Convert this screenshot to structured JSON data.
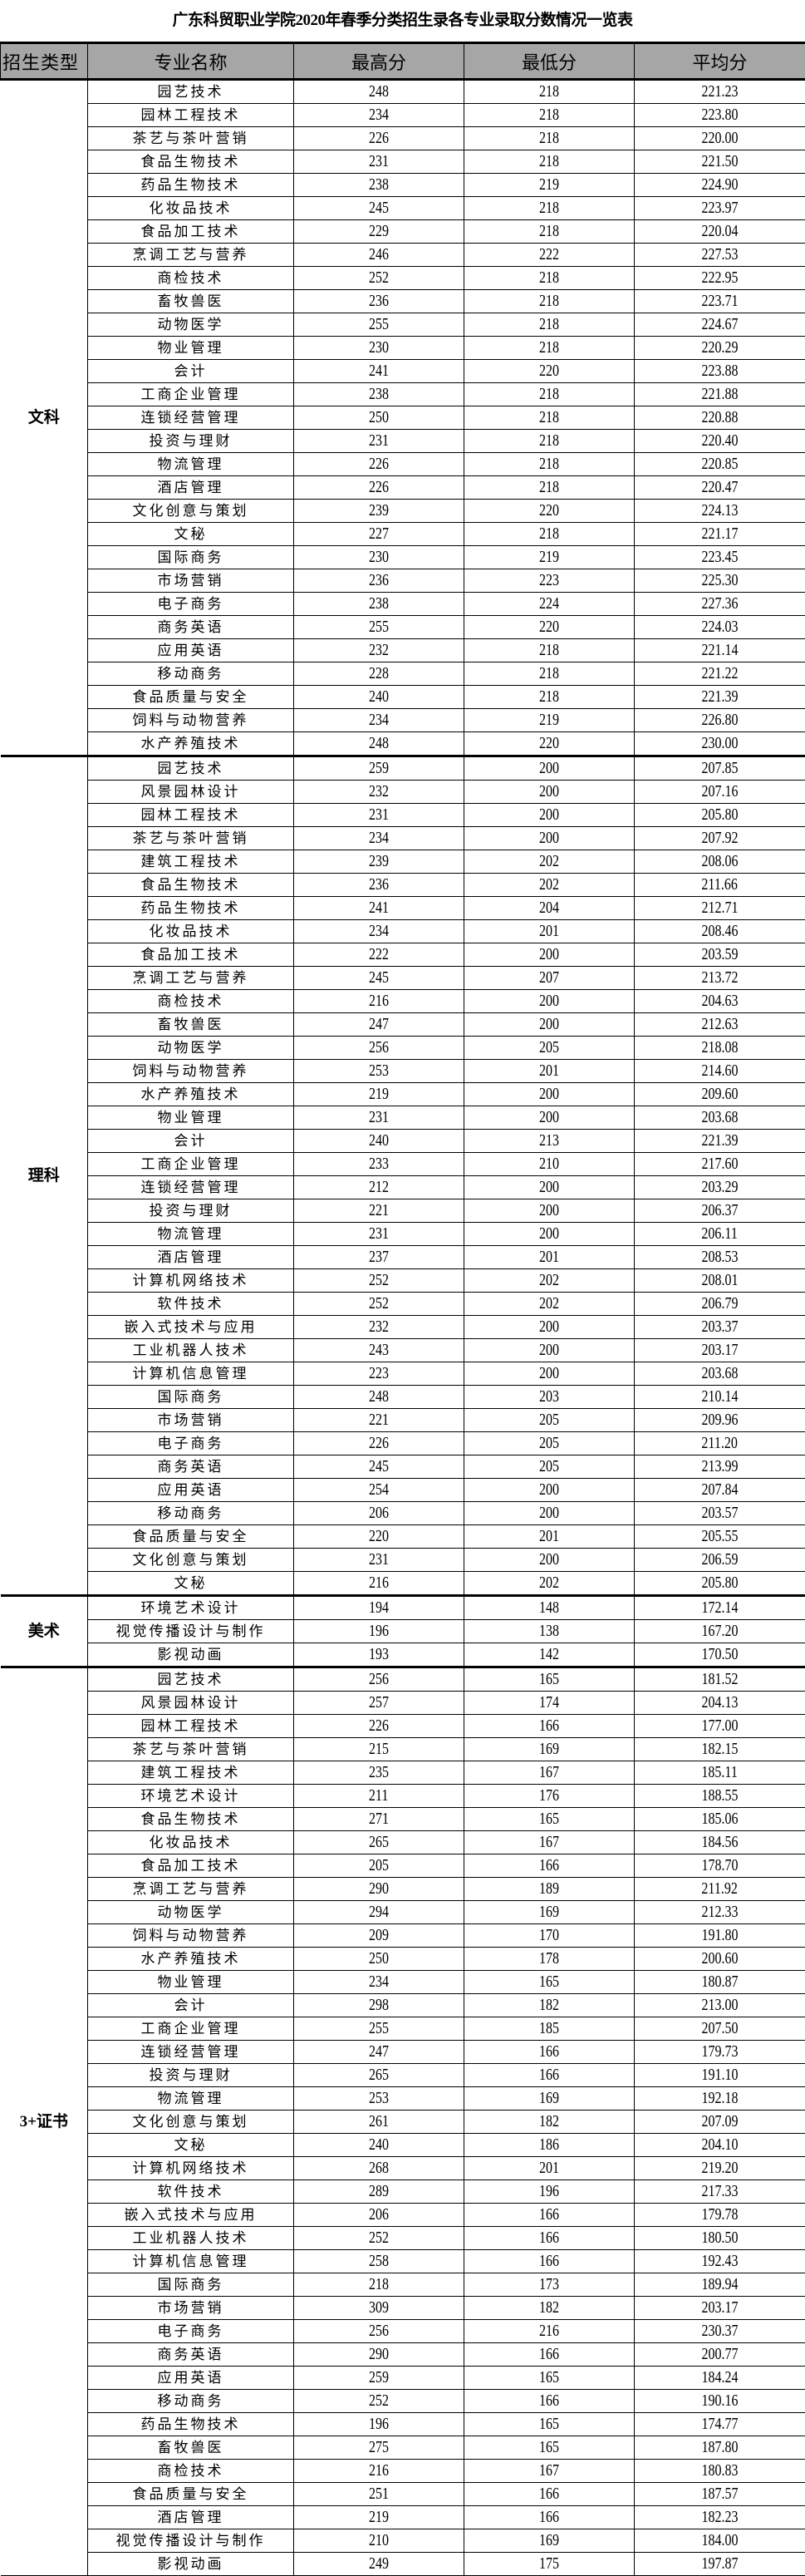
{
  "title": "广东科贸职业学院2020年春季分类招生录各专业录取分数情况一览表",
  "headers": [
    "招生类型",
    "专业名称",
    "最高分",
    "最低分",
    "平均分"
  ],
  "header_bg": "#a6a6a6",
  "groups": [
    {
      "type": "文科",
      "rows": [
        [
          "园艺技术",
          "248",
          "218",
          "221.23"
        ],
        [
          "园林工程技术",
          "234",
          "218",
          "223.80"
        ],
        [
          "茶艺与茶叶营销",
          "226",
          "218",
          "220.00"
        ],
        [
          "食品生物技术",
          "231",
          "218",
          "221.50"
        ],
        [
          "药品生物技术",
          "238",
          "219",
          "224.90"
        ],
        [
          "化妆品技术",
          "245",
          "218",
          "223.97"
        ],
        [
          "食品加工技术",
          "229",
          "218",
          "220.04"
        ],
        [
          "烹调工艺与营养",
          "246",
          "222",
          "227.53"
        ],
        [
          "商检技术",
          "252",
          "218",
          "222.95"
        ],
        [
          "畜牧兽医",
          "236",
          "218",
          "223.71"
        ],
        [
          "动物医学",
          "255",
          "218",
          "224.67"
        ],
        [
          "物业管理",
          "230",
          "218",
          "220.29"
        ],
        [
          "会计",
          "241",
          "220",
          "223.88"
        ],
        [
          "工商企业管理",
          "238",
          "218",
          "221.88"
        ],
        [
          "连锁经营管理",
          "250",
          "218",
          "220.88"
        ],
        [
          "投资与理财",
          "231",
          "218",
          "220.40"
        ],
        [
          "物流管理",
          "226",
          "218",
          "220.85"
        ],
        [
          "酒店管理",
          "226",
          "218",
          "220.47"
        ],
        [
          "文化创意与策划",
          "239",
          "220",
          "224.13"
        ],
        [
          "文秘",
          "227",
          "218",
          "221.17"
        ],
        [
          "国际商务",
          "230",
          "219",
          "223.45"
        ],
        [
          "市场营销",
          "236",
          "223",
          "225.30"
        ],
        [
          "电子商务",
          "238",
          "224",
          "227.36"
        ],
        [
          "商务英语",
          "255",
          "220",
          "224.03"
        ],
        [
          "应用英语",
          "232",
          "218",
          "221.14"
        ],
        [
          "移动商务",
          "228",
          "218",
          "221.22"
        ],
        [
          "食品质量与安全",
          "240",
          "218",
          "221.39"
        ],
        [
          "饲料与动物营养",
          "234",
          "219",
          "226.80"
        ],
        [
          "水产养殖技术",
          "248",
          "220",
          "230.00"
        ]
      ]
    },
    {
      "type": "理科",
      "rows": [
        [
          "园艺技术",
          "259",
          "200",
          "207.85"
        ],
        [
          "风景园林设计",
          "232",
          "200",
          "207.16"
        ],
        [
          "园林工程技术",
          "231",
          "200",
          "205.80"
        ],
        [
          "茶艺与茶叶营销",
          "234",
          "200",
          "207.92"
        ],
        [
          "建筑工程技术",
          "239",
          "202",
          "208.06"
        ],
        [
          "食品生物技术",
          "236",
          "202",
          "211.66"
        ],
        [
          "药品生物技术",
          "241",
          "204",
          "212.71"
        ],
        [
          "化妆品技术",
          "234",
          "201",
          "208.46"
        ],
        [
          "食品加工技术",
          "222",
          "200",
          "203.59"
        ],
        [
          "烹调工艺与营养",
          "245",
          "207",
          "213.72"
        ],
        [
          "商检技术",
          "216",
          "200",
          "204.63"
        ],
        [
          "畜牧兽医",
          "247",
          "200",
          "212.63"
        ],
        [
          "动物医学",
          "256",
          "205",
          "218.08"
        ],
        [
          "饲料与动物营养",
          "253",
          "201",
          "214.60"
        ],
        [
          "水产养殖技术",
          "219",
          "200",
          "209.60"
        ],
        [
          "物业管理",
          "231",
          "200",
          "203.68"
        ],
        [
          "会计",
          "240",
          "213",
          "221.39"
        ],
        [
          "工商企业管理",
          "233",
          "210",
          "217.60"
        ],
        [
          "连锁经营管理",
          "212",
          "200",
          "203.29"
        ],
        [
          "投资与理财",
          "221",
          "200",
          "206.37"
        ],
        [
          "物流管理",
          "231",
          "200",
          "206.11"
        ],
        [
          "酒店管理",
          "237",
          "201",
          "208.53"
        ],
        [
          "计算机网络技术",
          "252",
          "202",
          "208.01"
        ],
        [
          "软件技术",
          "252",
          "202",
          "206.79"
        ],
        [
          "嵌入式技术与应用",
          "232",
          "200",
          "203.37"
        ],
        [
          "工业机器人技术",
          "243",
          "200",
          "203.17"
        ],
        [
          "计算机信息管理",
          "223",
          "200",
          "203.68"
        ],
        [
          "国际商务",
          "248",
          "203",
          "210.14"
        ],
        [
          "市场营销",
          "221",
          "205",
          "209.96"
        ],
        [
          "电子商务",
          "226",
          "205",
          "211.20"
        ],
        [
          "商务英语",
          "245",
          "205",
          "213.99"
        ],
        [
          "应用英语",
          "254",
          "200",
          "207.84"
        ],
        [
          "移动商务",
          "206",
          "200",
          "203.57"
        ],
        [
          "食品质量与安全",
          "220",
          "201",
          "205.55"
        ],
        [
          "文化创意与策划",
          "231",
          "200",
          "206.59"
        ],
        [
          "文秘",
          "216",
          "202",
          "205.80"
        ]
      ]
    },
    {
      "type": "美术",
      "rows": [
        [
          "环境艺术设计",
          "194",
          "148",
          "172.14"
        ],
        [
          "视觉传播设计与制作",
          "196",
          "138",
          "167.20"
        ],
        [
          "影视动画",
          "193",
          "142",
          "170.50"
        ]
      ]
    },
    {
      "type": "3+证书",
      "rows": [
        [
          "园艺技术",
          "256",
          "165",
          "181.52"
        ],
        [
          "风景园林设计",
          "257",
          "174",
          "204.13"
        ],
        [
          "园林工程技术",
          "226",
          "166",
          "177.00"
        ],
        [
          "茶艺与茶叶营销",
          "215",
          "169",
          "182.15"
        ],
        [
          "建筑工程技术",
          "235",
          "167",
          "185.11"
        ],
        [
          "环境艺术设计",
          "211",
          "176",
          "188.55"
        ],
        [
          "食品生物技术",
          "271",
          "165",
          "185.06"
        ],
        [
          "化妆品技术",
          "265",
          "167",
          "184.56"
        ],
        [
          "食品加工技术",
          "205",
          "166",
          "178.70"
        ],
        [
          "烹调工艺与营养",
          "290",
          "189",
          "211.92"
        ],
        [
          "动物医学",
          "294",
          "169",
          "212.33"
        ],
        [
          "饲料与动物营养",
          "209",
          "170",
          "191.80"
        ],
        [
          "水产养殖技术",
          "250",
          "178",
          "200.60"
        ],
        [
          "物业管理",
          "234",
          "165",
          "180.87"
        ],
        [
          "会计",
          "298",
          "182",
          "213.00"
        ],
        [
          "工商企业管理",
          "255",
          "185",
          "207.50"
        ],
        [
          "连锁经营管理",
          "247",
          "166",
          "179.73"
        ],
        [
          "投资与理财",
          "265",
          "166",
          "191.10"
        ],
        [
          "物流管理",
          "253",
          "169",
          "192.18"
        ],
        [
          "文化创意与策划",
          "261",
          "182",
          "207.09"
        ],
        [
          "文秘",
          "240",
          "186",
          "204.10"
        ],
        [
          "计算机网络技术",
          "268",
          "201",
          "219.20"
        ],
        [
          "软件技术",
          "289",
          "196",
          "217.33"
        ],
        [
          "嵌入式技术与应用",
          "206",
          "166",
          "179.78"
        ],
        [
          "工业机器人技术",
          "252",
          "166",
          "180.50"
        ],
        [
          "计算机信息管理",
          "258",
          "166",
          "192.43"
        ],
        [
          "国际商务",
          "218",
          "173",
          "189.94"
        ],
        [
          "市场营销",
          "309",
          "182",
          "203.17"
        ],
        [
          "电子商务",
          "256",
          "216",
          "230.37"
        ],
        [
          "商务英语",
          "290",
          "166",
          "200.77"
        ],
        [
          "应用英语",
          "259",
          "165",
          "184.24"
        ],
        [
          "移动商务",
          "252",
          "166",
          "190.16"
        ],
        [
          "药品生物技术",
          "196",
          "165",
          "174.77"
        ],
        [
          "畜牧兽医",
          "275",
          "165",
          "187.80"
        ],
        [
          "商检技术",
          "216",
          "167",
          "180.83"
        ],
        [
          "食品质量与安全",
          "251",
          "166",
          "187.57"
        ],
        [
          "酒店管理",
          "219",
          "166",
          "182.23"
        ],
        [
          "视觉传播设计与制作",
          "210",
          "169",
          "184.00"
        ],
        [
          "影视动画",
          "249",
          "175",
          "197.87"
        ]
      ]
    }
  ]
}
